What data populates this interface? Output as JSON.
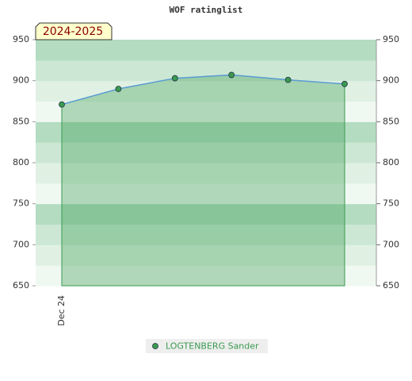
{
  "chart_data": {
    "type": "area",
    "title": "WOF ratinglist",
    "annotation": "2024-2025",
    "categories": [
      "Dec 24",
      null,
      null,
      null,
      null,
      null
    ],
    "series": [
      {
        "name": "LOGTENBERG Sander",
        "color": "#3a9a50",
        "values": [
          871,
          890,
          903,
          907,
          901,
          896
        ]
      }
    ],
    "ylim": [
      650,
      950
    ],
    "yticks": [
      650,
      700,
      750,
      800,
      850,
      900,
      950
    ],
    "y2lim": [
      650,
      950
    ],
    "y2ticks": [
      650,
      700,
      750,
      800,
      850,
      900,
      950
    ],
    "grid": true
  }
}
